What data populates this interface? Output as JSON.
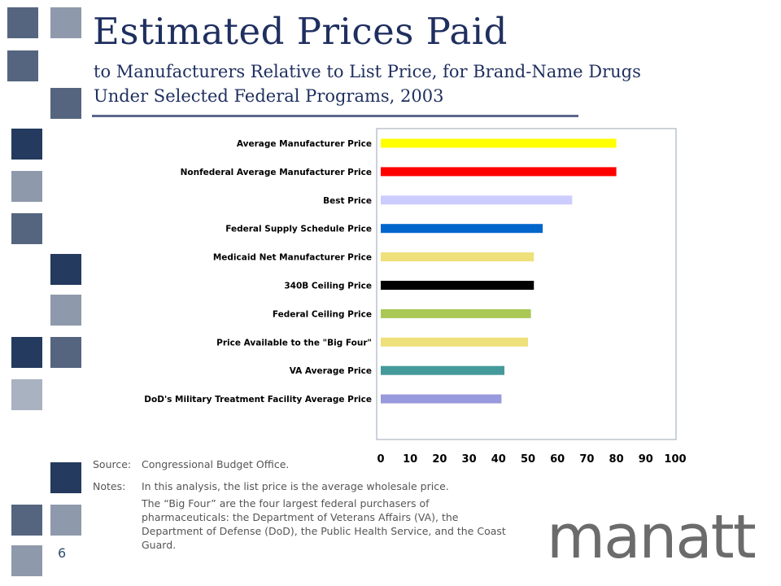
{
  "title": "Estimated Prices Paid",
  "subtitle_line1": "to Manufacturers Relative to List Price, for Brand-Name Drugs",
  "subtitle_line2": "Under Selected Federal Programs, 2003",
  "chart_data": {
    "type": "bar",
    "orientation": "horizontal",
    "categories": [
      "Average Manufacturer Price",
      "Nonfederal Average Manufacturer Price",
      "Best Price",
      "Federal Supply Schedule Price",
      "Medicaid Net Manufacturer Price",
      "340B Ceiling Price",
      "Federal Ceiling Price",
      "Price Available to the \"Big Four\"",
      "VA Average Price",
      "DoD's Military Treatment Facility Average Price"
    ],
    "values": [
      80,
      80,
      65,
      55,
      52,
      52,
      51,
      50,
      42,
      41
    ],
    "bar_colors": [
      "#ffff00",
      "#ff0000",
      "#ccccff",
      "#0066cc",
      "#eee07a",
      "#000000",
      "#a9c855",
      "#eee07a",
      "#449a9a",
      "#9999dd"
    ],
    "xlim": [
      0,
      100
    ],
    "xticks": [
      "0",
      "10",
      "20",
      "30",
      "40",
      "50",
      "60",
      "70",
      "80",
      "90",
      "100"
    ],
    "grid": false,
    "legend": "none"
  },
  "notes": {
    "source_label": "Source:",
    "source_text": "Congressional Budget Office.",
    "notes_label": "Notes:",
    "notes_text": "In this analysis, the list price is the average wholesale price.",
    "big_four_text": "The “Big Four” are the four largest federal purchasers of pharmaceuticals: the Department of Veterans Affairs (VA), the Department of Defense (DoD), the Public Health Service, and the Coast Guard."
  },
  "page_number": "6",
  "logo_text": "manatt",
  "colors": {
    "title": "#1f2f5f",
    "square_dark": "#243a5e",
    "square_mid": "#55657f",
    "square_light": "#8e9aab",
    "square_pale": "#a9b2c0"
  }
}
